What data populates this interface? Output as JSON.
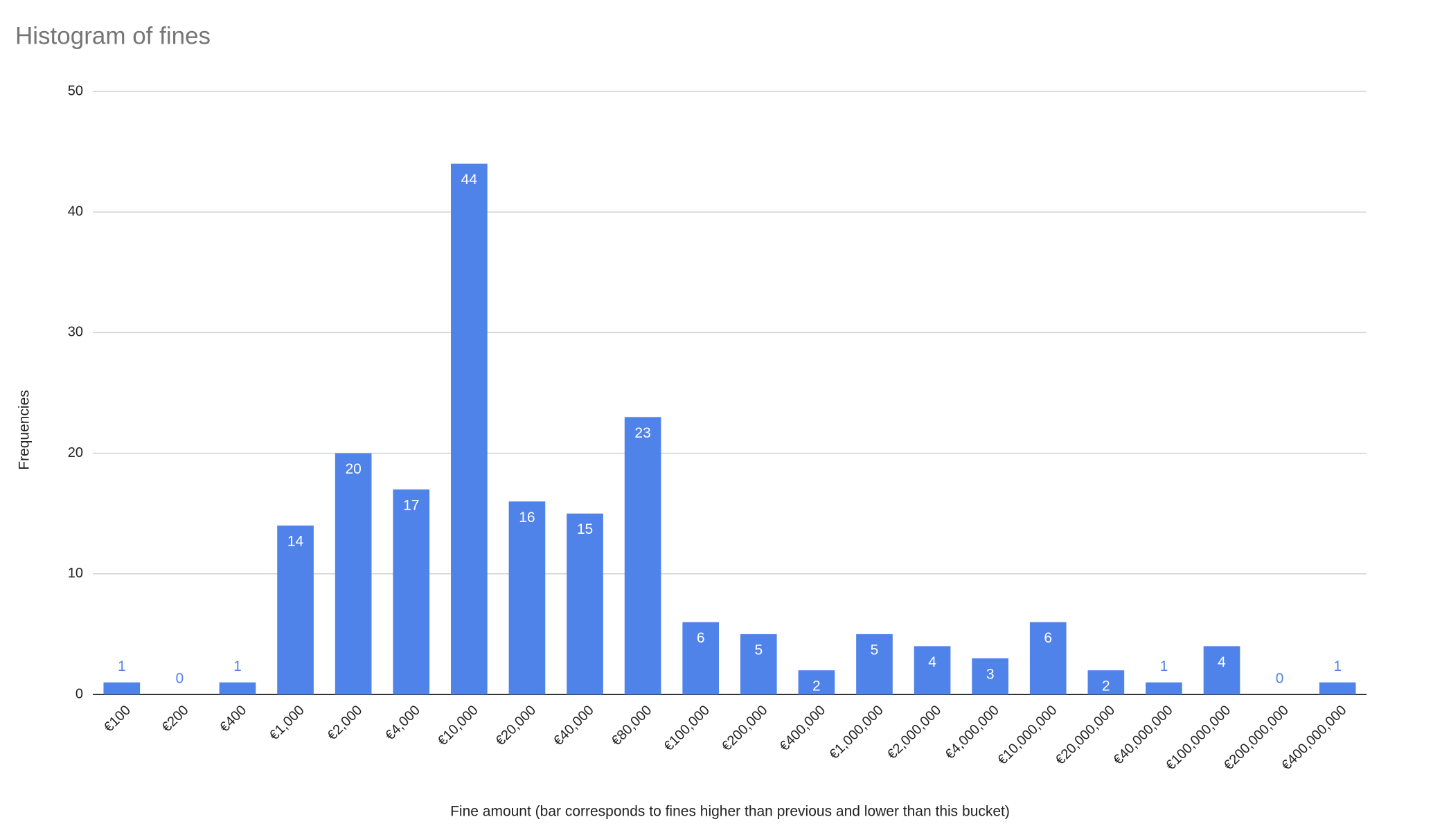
{
  "chart_data": {
    "type": "bar",
    "title": "Histogram of fines",
    "x_label": "Fine amount (bar corresponds to fines higher than previous and lower than this bucket)",
    "y_label": "Frequencies",
    "categories": [
      "€100",
      "€200",
      "€400",
      "€1,000",
      "€2,000",
      "€4,000",
      "€10,000",
      "€20,000",
      "€40,000",
      "€80,000",
      "€100,000",
      "€200,000",
      "€400,000",
      "€1,000,000",
      "€2,000,000",
      "€4,000,000",
      "€10,000,000",
      "€20,000,000",
      "€40,000,000",
      "€100,000,000",
      "€200,000,000",
      "€400,000,000"
    ],
    "values": [
      1,
      0,
      1,
      14,
      20,
      17,
      44,
      16,
      15,
      23,
      6,
      5,
      2,
      5,
      4,
      3,
      6,
      2,
      1,
      4,
      0,
      1
    ],
    "color": "#4f83ea",
    "ylim": [
      0,
      50
    ],
    "yticks": [
      0,
      10,
      20,
      30,
      40,
      50
    ],
    "grid": true
  }
}
